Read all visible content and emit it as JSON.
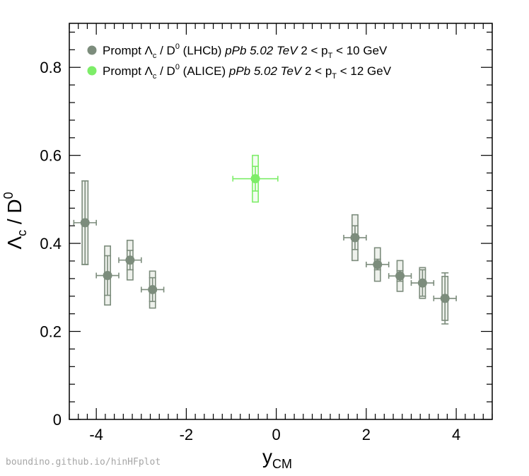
{
  "chart_data": {
    "type": "scatter",
    "x_axis": {
      "label_main": "y",
      "label_sub": "CM",
      "range": [
        -4.6,
        4.8
      ],
      "major_ticks": [
        -4,
        -2,
        0,
        2,
        4
      ],
      "tick_labels": [
        "-4",
        "-2",
        "0",
        "2",
        "4"
      ],
      "minor_step": 0.2
    },
    "y_axis": {
      "label_lambda": "Λ",
      "label_lambda_sub": "c",
      "label_sep": " / D",
      "label_d_sup": "0",
      "range": [
        0,
        0.9
      ],
      "major_ticks": [
        0,
        0.2,
        0.4,
        0.6,
        0.8
      ],
      "tick_labels": [
        "0",
        "0.2",
        "0.4",
        "0.6",
        "0.8"
      ],
      "minor_step": 0.04
    },
    "series": [
      {
        "name": "LHCb",
        "marker_color": "#7c8c7c",
        "box_fill": "#eef1ec",
        "legend": {
          "prefix": "Prompt Λ",
          "sub1": "c",
          "mid": " / D",
          "sup": "0",
          "exp": " (LHCb) ",
          "system": "pPb 5.02 TeV",
          "range_pre": " 2 < p",
          "sub2": "T",
          "range_post": " < 10 GeV"
        },
        "points": [
          {
            "x": -4.25,
            "y": 0.447,
            "xerr": 0.25,
            "stat": 0.095,
            "syst": 0.095
          },
          {
            "x": -3.75,
            "y": 0.327,
            "xerr": 0.25,
            "stat": 0.045,
            "syst": 0.067
          },
          {
            "x": -3.25,
            "y": 0.362,
            "xerr": 0.25,
            "stat": 0.022,
            "syst": 0.045
          },
          {
            "x": -2.75,
            "y": 0.295,
            "xerr": 0.25,
            "stat": 0.027,
            "syst": 0.042
          },
          {
            "x": 1.75,
            "y": 0.413,
            "xerr": 0.25,
            "stat": 0.027,
            "syst": 0.052
          },
          {
            "x": 2.25,
            "y": 0.352,
            "xerr": 0.25,
            "stat": 0.012,
            "syst": 0.038
          },
          {
            "x": 2.75,
            "y": 0.326,
            "xerr": 0.25,
            "stat": 0.012,
            "syst": 0.035
          },
          {
            "x": 3.25,
            "y": 0.31,
            "xerr": 0.25,
            "stat": 0.03,
            "syst": 0.035
          },
          {
            "x": 3.75,
            "y": 0.275,
            "xerr": 0.25,
            "stat": 0.058,
            "syst": 0.05
          }
        ]
      },
      {
        "name": "ALICE",
        "marker_color": "#7ded68",
        "box_fill": "#f3fdf1",
        "legend": {
          "prefix": "Prompt Λ",
          "sub1": "c",
          "mid": " / D",
          "sup": "0",
          "exp": " (ALICE) ",
          "system": "pPb 5.02 TeV",
          "range_pre": " 2 < p",
          "sub2": "T",
          "range_post": " < 12 GeV"
        },
        "points": [
          {
            "x": -0.465,
            "y": 0.547,
            "xerr": 0.5,
            "stat": 0.028,
            "syst": 0.053
          }
        ]
      }
    ],
    "watermark": "boundino.github.io/hinHFplot"
  }
}
